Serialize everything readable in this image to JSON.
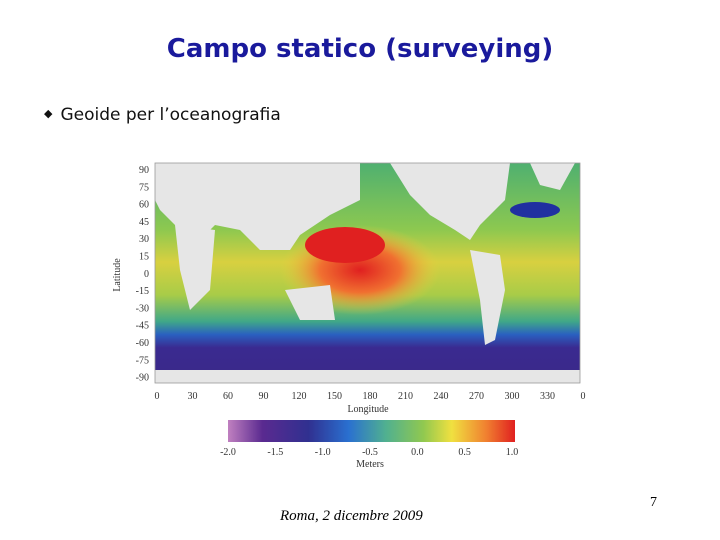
{
  "header": {
    "title": "Campo statico (surveying)"
  },
  "bullets": [
    "Geoide per l’oceanografia"
  ],
  "figure": {
    "y_label": "Latitude",
    "x_label": "Longitude",
    "y_ticks": [
      "90",
      "75",
      "60",
      "45",
      "30",
      "15",
      "0",
      "-15",
      "-30",
      "-45",
      "-60",
      "-75",
      "-90"
    ],
    "x_ticks": [
      "0",
      "30",
      "60",
      "90",
      "120",
      "150",
      "180",
      "210",
      "240",
      "270",
      "300",
      "330",
      "0"
    ],
    "colorbar_label": "Meters",
    "colorbar_ticks": [
      "-2.0",
      "-1.5",
      "-1.0",
      "-0.5",
      "0.0",
      "0.5",
      "1.0"
    ]
  },
  "footer": {
    "date": "Roma, 2 dicembre 2009",
    "page": "7"
  }
}
